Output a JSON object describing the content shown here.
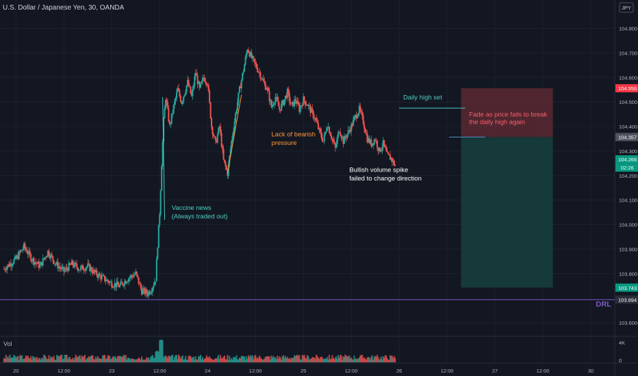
{
  "header": {
    "symbol_title": "U.S. Dollar / Japanese Yen, 30, OANDA",
    "currency_badge": "JPY"
  },
  "volume_pane": {
    "label": "Vol",
    "axis_ticks": [
      "4K",
      "0"
    ]
  },
  "chart_data": {
    "type": "candlestick",
    "title": "U.S. Dollar / Japanese Yen, 30, OANDA",
    "price_axis": {
      "range": [
        103.55,
        104.86
      ],
      "ticks": [
        104.8,
        104.7,
        104.6,
        104.5,
        104.4,
        104.3,
        104.2,
        104.1,
        104.0,
        103.9,
        103.8,
        103.6
      ]
    },
    "time_axis": {
      "ticks": [
        {
          "label": "20",
          "t": 0
        },
        {
          "label": "12:00",
          "t": 24
        },
        {
          "label": "23",
          "t": 48
        },
        {
          "label": "12:00",
          "t": 72
        },
        {
          "label": "24",
          "t": 96
        },
        {
          "label": "12:00",
          "t": 120
        },
        {
          "label": "25",
          "t": 144
        },
        {
          "label": "12:00",
          "t": 168
        },
        {
          "label": "26",
          "t": 192
        },
        {
          "label": "12:00",
          "t": 216
        },
        {
          "label": "27",
          "t": 240
        },
        {
          "label": "12:00",
          "t": 264
        },
        {
          "label": "30",
          "t": 288
        }
      ]
    },
    "price_path": [
      [
        -6,
        103.82
      ],
      [
        0,
        103.86
      ],
      [
        4,
        103.91
      ],
      [
        8,
        103.86
      ],
      [
        12,
        103.83
      ],
      [
        16,
        103.89
      ],
      [
        20,
        103.84
      ],
      [
        24,
        103.81
      ],
      [
        28,
        103.84
      ],
      [
        32,
        103.82
      ],
      [
        36,
        103.83
      ],
      [
        40,
        103.8
      ],
      [
        44,
        103.78
      ],
      [
        48,
        103.76
      ],
      [
        52,
        103.75
      ],
      [
        56,
        103.78
      ],
      [
        60,
        103.8
      ],
      [
        63,
        103.73
      ],
      [
        66,
        103.72
      ],
      [
        68,
        103.74
      ],
      [
        70,
        103.78
      ],
      [
        71,
        103.92
      ],
      [
        72,
        104.05
      ],
      [
        73,
        104.25
      ],
      [
        74,
        104.42
      ],
      [
        75,
        104.52
      ],
      [
        77,
        104.4
      ],
      [
        79,
        104.48
      ],
      [
        81,
        104.55
      ],
      [
        83,
        104.5
      ],
      [
        86,
        104.58
      ],
      [
        88,
        104.52
      ],
      [
        90,
        104.62
      ],
      [
        92,
        104.55
      ],
      [
        94,
        104.6
      ],
      [
        96,
        104.58
      ],
      [
        98,
        104.4
      ],
      [
        100,
        104.33
      ],
      [
        102,
        104.4
      ],
      [
        104,
        104.26
      ],
      [
        106,
        104.21
      ],
      [
        108,
        104.34
      ],
      [
        110,
        104.45
      ],
      [
        112,
        104.55
      ],
      [
        114,
        104.63
      ],
      [
        116,
        104.72
      ],
      [
        118,
        104.68
      ],
      [
        120,
        104.65
      ],
      [
        122,
        104.62
      ],
      [
        124,
        104.58
      ],
      [
        126,
        104.55
      ],
      [
        128,
        104.48
      ],
      [
        130,
        104.52
      ],
      [
        132,
        104.47
      ],
      [
        134,
        104.5
      ],
      [
        136,
        104.54
      ],
      [
        138,
        104.48
      ],
      [
        140,
        104.51
      ],
      [
        142,
        104.47
      ],
      [
        144,
        104.51
      ],
      [
        146,
        104.49
      ],
      [
        148,
        104.46
      ],
      [
        150,
        104.43
      ],
      [
        152,
        104.38
      ],
      [
        154,
        104.34
      ],
      [
        156,
        104.41
      ],
      [
        158,
        104.36
      ],
      [
        160,
        104.31
      ],
      [
        162,
        104.39
      ],
      [
        164,
        104.34
      ],
      [
        166,
        104.37
      ],
      [
        168,
        104.4
      ],
      [
        170,
        104.44
      ],
      [
        172,
        104.47
      ],
      [
        174,
        104.42
      ],
      [
        176,
        104.35
      ],
      [
        178,
        104.33
      ],
      [
        180,
        104.35
      ],
      [
        182,
        104.3
      ],
      [
        184,
        104.33
      ],
      [
        186,
        104.28
      ],
      [
        188,
        104.27
      ],
      [
        190,
        104.24
      ]
    ],
    "current_price": 104.266,
    "countdown": "02:26",
    "price_labels": [
      {
        "value": 104.556,
        "text": "104.556",
        "color": "#f23645"
      },
      {
        "value": 104.357,
        "text": "104.357",
        "color": "#50535e"
      },
      {
        "value": 104.266,
        "text": "104.266",
        "color": "#089981"
      },
      {
        "value": 103.743,
        "text": "103.743",
        "color": "#089981"
      },
      {
        "value": 103.694,
        "text": "103.694",
        "color": "#2a2e39"
      }
    ],
    "drl_line": {
      "value": 103.694,
      "label": "DRL",
      "color": "#7e57c2"
    },
    "daily_high_line": {
      "value": 104.475,
      "t_start": 192,
      "t_end": 225
    },
    "entry_line": {
      "value": 104.357,
      "t_start": 217,
      "t_end": 235
    },
    "short_position": {
      "t_start": 223,
      "t_end": 269,
      "stop": 104.556,
      "entry": 104.357,
      "target": 103.743,
      "risk_color": "#5b2931",
      "reward_color": "#163b3b"
    },
    "annotations": [
      {
        "text": "Daily high set",
        "t": 194,
        "price": 104.51,
        "color": "#4dd0c4"
      },
      {
        "text": "Fade as price fails to break",
        "t": 227,
        "price": 104.44,
        "color": "#ff5d6c"
      },
      {
        "text": "the daily high again",
        "t": 227,
        "price": 104.41,
        "color": "#ff5d6c"
      },
      {
        "text": "Lack of bearish",
        "t": 128,
        "price": 104.36,
        "color": "#ff9a3c"
      },
      {
        "text": "pressure",
        "t": 128,
        "price": 104.325,
        "color": "#ff9a3c"
      },
      {
        "text": "Bullish volume spike",
        "t": 167,
        "price": 104.215,
        "color": "#ffffff"
      },
      {
        "text": "failed to change direction",
        "t": 167,
        "price": 104.18,
        "color": "#ffffff"
      },
      {
        "text": "Vaccine news",
        "t": 78,
        "price": 104.06,
        "color": "#4dd0c4"
      },
      {
        "text": "(Always traded out)",
        "t": 78,
        "price": 104.025,
        "color": "#4dd0c4"
      }
    ],
    "trend_lines": [
      {
        "name": "vaccine-line",
        "t1": 73.5,
        "p1": 104.52,
        "t2": 74.5,
        "p2": 104.02,
        "color": "#4dd0c4"
      },
      {
        "name": "bearish-pressure-line",
        "t1": 106,
        "p1": 104.21,
        "t2": 113,
        "p2": 104.53,
        "color": "#ff9a3c"
      }
    ],
    "volume": {
      "max_tick": 4000,
      "base_level": 1200,
      "spikes": [
        {
          "t_start": 72,
          "t_end": 74,
          "value": 4700
        },
        {
          "t_start": 70,
          "t_end": 72,
          "value": 2500
        }
      ]
    },
    "colors": {
      "up": "#26a69a",
      "down": "#ef5350",
      "grid": "#1e222d",
      "text": "#b2b5be"
    }
  }
}
